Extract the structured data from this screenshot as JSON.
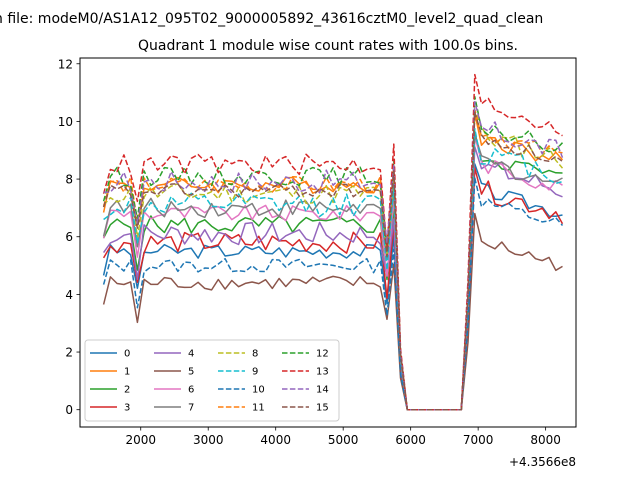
{
  "figure": {
    "suptitle": "n file: modeM0/AS1A12_095T02_9000005892_43616cztM0_level2_quad_clean",
    "background": "#ffffff"
  },
  "chart_data": {
    "type": "line",
    "title": "Quadrant 1 module wise count rates with 100.0s bins.",
    "xlabel": "",
    "ylabel": "",
    "x_offset_label": "+4.3566e8",
    "xlim": [
      1100,
      8450
    ],
    "ylim": [
      -0.6,
      12.2
    ],
    "x_ticks": [
      2000,
      3000,
      4000,
      5000,
      6000,
      7000,
      8000
    ],
    "x_tick_labels": [
      "2000",
      "3000",
      "4000",
      "5000",
      "6000",
      "7000",
      "8000"
    ],
    "y_ticks": [
      0,
      2,
      4,
      6,
      8,
      10,
      12
    ],
    "y_tick_labels": [
      "0",
      "2",
      "4",
      "6",
      "8",
      "10",
      "12"
    ],
    "grid": false,
    "legend": {
      "placement": "lower-left",
      "columns": 4
    },
    "x_first": 1450,
    "x_step": 100,
    "gap_start_x": 5950,
    "gap_end_x": 6750,
    "series": [
      {
        "name": "0",
        "color": "#1f77b4",
        "dash": false,
        "level": 5.5,
        "post": 7.0
      },
      {
        "name": "1",
        "color": "#ff7f0e",
        "dash": false,
        "level": 7.8,
        "post": 8.8
      },
      {
        "name": "2",
        "color": "#2ca02c",
        "dash": false,
        "level": 6.4,
        "post": 8.2
      },
      {
        "name": "3",
        "color": "#d62728",
        "dash": false,
        "level": 5.8,
        "post": 7.0
      },
      {
        "name": "4",
        "color": "#9467bd",
        "dash": false,
        "level": 6.1,
        "post": 7.8
      },
      {
        "name": "5",
        "color": "#8c564b",
        "dash": false,
        "level": 4.4,
        "post": 5.2
      },
      {
        "name": "6",
        "color": "#e377c2",
        "dash": false,
        "level": 6.8,
        "post": 7.9
      },
      {
        "name": "7",
        "color": "#7f7f7f",
        "dash": false,
        "level": 7.0,
        "post": 8.0
      },
      {
        "name": "8",
        "color": "#bcbd22",
        "dash": true,
        "level": 7.5,
        "post": 8.9
      },
      {
        "name": "9",
        "color": "#17becf",
        "dash": true,
        "level": 7.1,
        "post": 8.3
      },
      {
        "name": "10",
        "color": "#1f77b4",
        "dash": true,
        "level": 5.0,
        "post": 6.6
      },
      {
        "name": "11",
        "color": "#ff7f0e",
        "dash": true,
        "level": 7.8,
        "post": 9.0
      },
      {
        "name": "12",
        "color": "#2ca02c",
        "dash": true,
        "level": 8.1,
        "post": 9.2
      },
      {
        "name": "13",
        "color": "#d62728",
        "dash": true,
        "level": 8.5,
        "post": 10.0
      },
      {
        "name": "14",
        "color": "#9467bd",
        "dash": true,
        "level": 7.9,
        "post": 9.1
      },
      {
        "name": "15",
        "color": "#8c564b",
        "dash": true,
        "level": 7.6,
        "post": 8.8
      }
    ]
  }
}
